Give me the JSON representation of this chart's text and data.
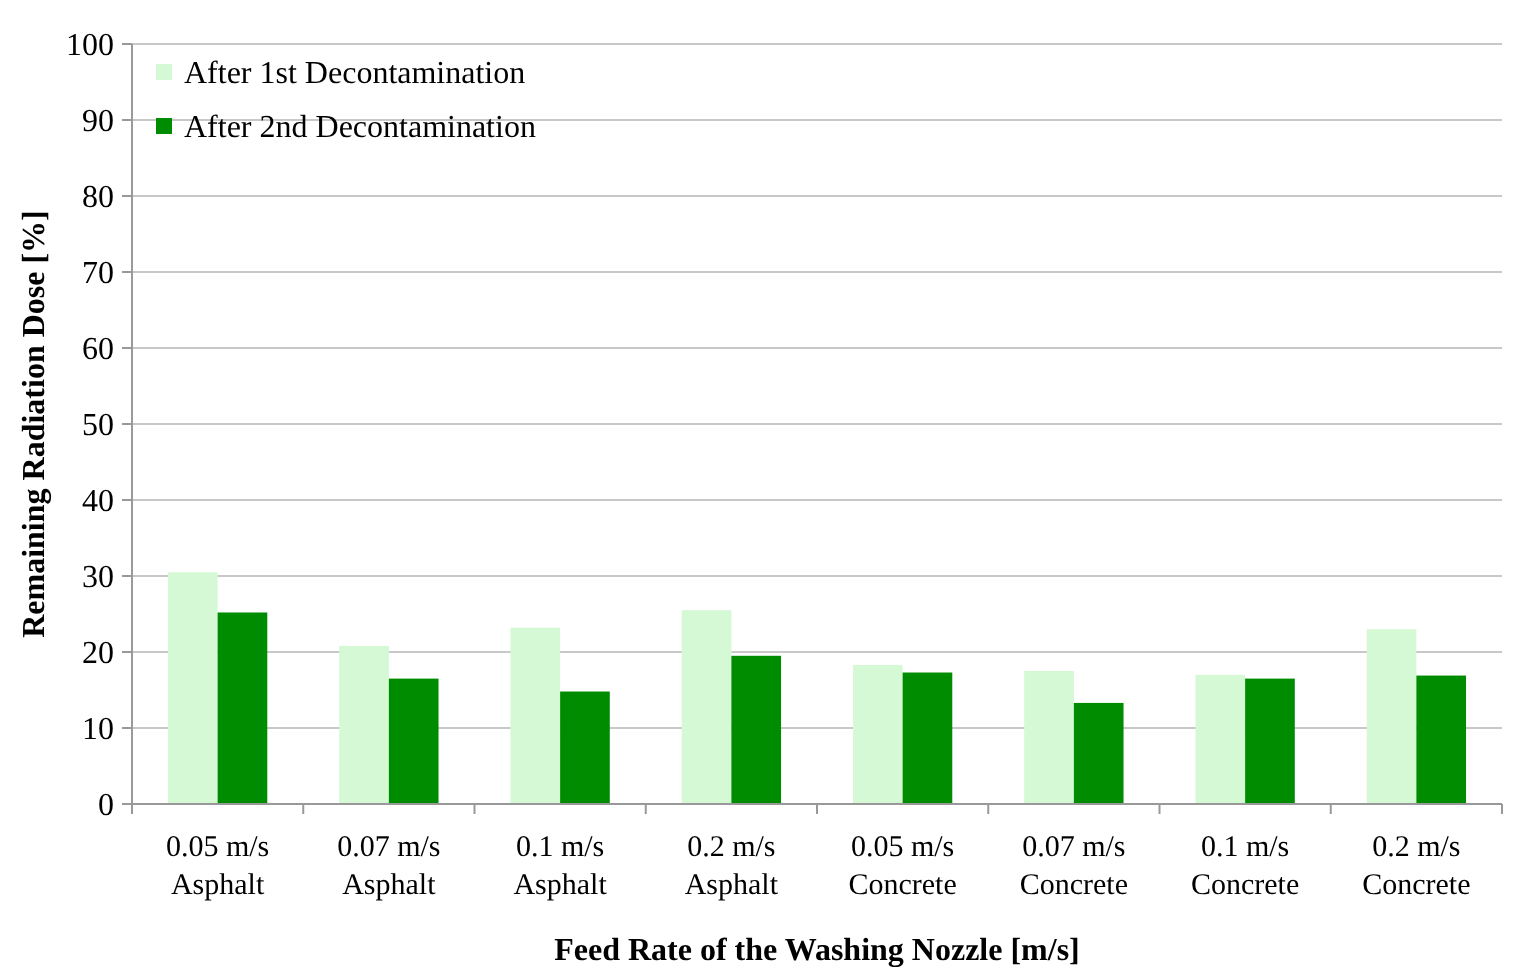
{
  "chart_data": {
    "type": "bar",
    "xlabel": "Feed Rate of the Washing Nozzle [m/s]",
    "ylabel": "Remaining Radiation Dose [%]",
    "categories": [
      "0.05 m/s\nAsphalt",
      "0.07 m/s\nAsphalt",
      "0.1 m/s\nAsphalt",
      "0.2 m/s\nAsphalt",
      "0.05 m/s\nConcrete",
      "0.07 m/s\nConcrete",
      "0.1 m/s\nConcrete",
      "0.2 m/s\nConcrete"
    ],
    "series": [
      {
        "name": "After 1st Decontamination",
        "color": "#d5f9d5",
        "values": [
          30.5,
          20.8,
          23.2,
          25.5,
          18.3,
          17.5,
          17,
          23
        ]
      },
      {
        "name": "After 2nd Decontamination",
        "color": "#008c00",
        "values": [
          25.2,
          16.5,
          14.8,
          19.5,
          17.3,
          13.3,
          16.5,
          16.9
        ]
      }
    ],
    "ylim": [
      0,
      100
    ],
    "yticks": [
      0,
      10,
      20,
      30,
      40,
      50,
      60,
      70,
      80,
      90,
      100
    ],
    "grid": "y",
    "legend": "top left"
  }
}
